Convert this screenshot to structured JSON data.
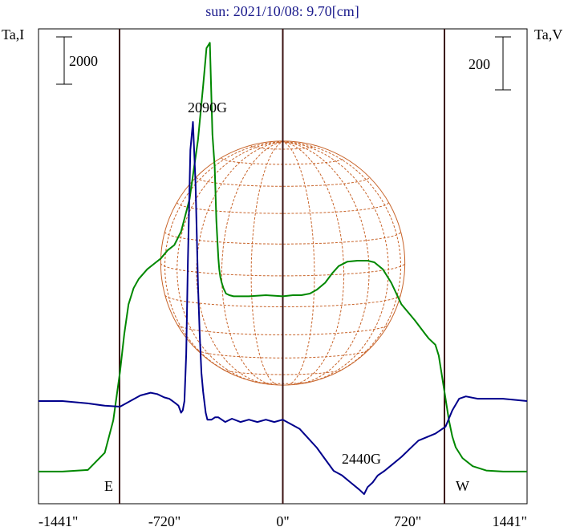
{
  "chart_data": {
    "type": "line",
    "title": "sun: 2021/10/08: 9.70[cm]",
    "ylabel_left": "Ta,I",
    "ylabel_right": "Ta,V",
    "scale_bar_left": "2000",
    "scale_bar_right": "200",
    "xlim": [
      -1441,
      1441
    ],
    "x_ticks": [
      -1441,
      -720,
      0,
      720,
      1441
    ],
    "x_tick_labels": [
      "-1441\"",
      "-720\"",
      "0\"",
      "720\"",
      "1441\""
    ],
    "limb_positions": [
      -1441,
      0,
      1441
    ],
    "solar_disk_edges": [
      -720,
      720
    ],
    "limb_labels": [
      "E",
      "W"
    ],
    "ylim_left": [
      0,
      8000
    ],
    "ylim_right": [
      -800,
      800
    ],
    "annotations": [
      {
        "text": "2090G",
        "x": -430,
        "y": 6900
      },
      {
        "text": "2440G",
        "x": 390,
        "y": 380
      }
    ],
    "series": [
      {
        "color": "#008800",
        "axis": "left",
        "x": [
          -1441,
          -1300,
          -1150,
          -1050,
          -1000,
          -960,
          -935,
          -910,
          -880,
          -850,
          -800,
          -760,
          -720,
          -680,
          -640,
          -600,
          -550,
          -500,
          -470,
          -450,
          -430,
          -415,
          -402,
          -392,
          -385,
          -380,
          -375,
          -368,
          -360,
          -350,
          -335,
          -315,
          -290,
          -260,
          -200,
          -100,
          0,
          60,
          110,
          160,
          200,
          250,
          290,
          330,
          380,
          440,
          500,
          540,
          590,
          640,
          700,
          780,
          840,
          860,
          900,
          920,
          945,
          980,
          1000,
          1020,
          1060,
          1120,
          1200,
          1300,
          1441
        ],
        "y": [
          150,
          150,
          180,
          500,
          1100,
          2000,
          2700,
          3250,
          3550,
          3720,
          3900,
          4000,
          4100,
          4250,
          4350,
          4600,
          5200,
          6300,
          7300,
          8000,
          8100,
          6400,
          5800,
          4800,
          4400,
          4100,
          3900,
          3750,
          3650,
          3550,
          3450,
          3420,
          3400,
          3400,
          3400,
          3420,
          3400,
          3420,
          3420,
          3450,
          3520,
          3650,
          3820,
          3960,
          4040,
          4060,
          4060,
          4030,
          3900,
          3650,
          3250,
          2950,
          2700,
          2620,
          2500,
          2300,
          1800,
          1100,
          800,
          600,
          400,
          250,
          170,
          150,
          150
        ]
      },
      {
        "color": "#00008c",
        "axis": "right",
        "x": [
          -1441,
          -1300,
          -1150,
          -1050,
          -960,
          -900,
          -840,
          -780,
          -740,
          -700,
          -670,
          -650,
          -632,
          -615,
          -600,
          -590,
          -580,
          -570,
          -560,
          -545,
          -530,
          -515,
          -500,
          -490,
          -480,
          -470,
          -455,
          -445,
          -435,
          -420,
          -400,
          -380,
          -340,
          -300,
          -250,
          -200,
          -150,
          -100,
          -50,
          0,
          50,
          100,
          150,
          200,
          250,
          300,
          350,
          400,
          450,
          480,
          500,
          530,
          560,
          600,
          650,
          700,
          800,
          900,
          960,
          1000,
          1040,
          1080,
          1150,
          1300,
          1441
        ],
        "y": [
          0,
          0,
          -5,
          -10,
          -12,
          0,
          12,
          18,
          15,
          8,
          5,
          0,
          -5,
          -10,
          -25,
          -20,
          0,
          100,
          300,
          540,
          600,
          470,
          250,
          140,
          60,
          20,
          -25,
          -40,
          -40,
          -40,
          -35,
          -35,
          -45,
          -38,
          -45,
          -40,
          -45,
          -40,
          -45,
          -40,
          -50,
          -60,
          -80,
          -100,
          -125,
          -150,
          -160,
          -175,
          -190,
          -200,
          -185,
          -175,
          -160,
          -150,
          -135,
          -120,
          -85,
          -70,
          -55,
          -20,
          5,
          10,
          5,
          5,
          0
        ]
      }
    ]
  }
}
